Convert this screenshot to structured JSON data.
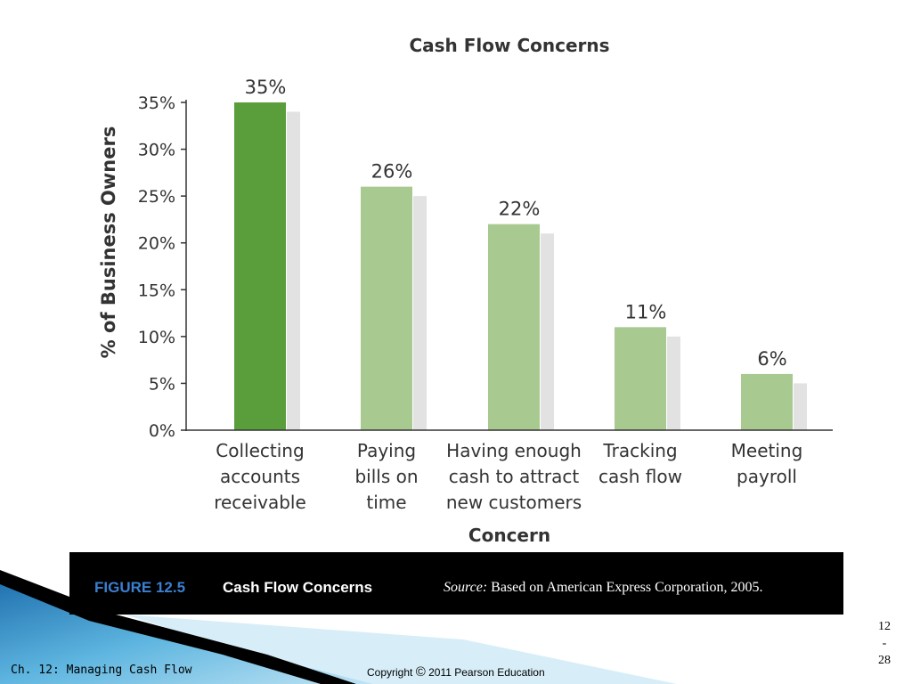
{
  "chart_data": {
    "type": "bar",
    "title": "Cash Flow Concerns",
    "xlabel": "Concern",
    "ylabel": "% of Business Owners",
    "ylim": [
      0,
      35
    ],
    "yticks": [
      "0%",
      "5%",
      "10%",
      "15%",
      "20%",
      "25%",
      "30%",
      "35%"
    ],
    "categories": [
      [
        "Collecting",
        "accounts",
        "receivable"
      ],
      [
        "Paying",
        "bills on",
        "time"
      ],
      [
        "Having enough",
        "cash to attract",
        "new customers"
      ],
      [
        "Tracking",
        "cash flow"
      ],
      [
        "Meeting",
        "payroll"
      ]
    ],
    "values": [
      35,
      26,
      22,
      11,
      6
    ],
    "value_labels": [
      "35%",
      "26%",
      "22%",
      "11%",
      "6%"
    ],
    "grid": false,
    "colors": {
      "highlight": "#5a9e3c",
      "bar": "#a8c990",
      "shadow": "#e2e2e2"
    }
  },
  "caption": {
    "figure_label": "FIGURE 12.5",
    "figure_title": "Cash Flow Concerns",
    "source_word": "Source:",
    "source_text": " Based on American Express Corporation, 2005."
  },
  "footer": {
    "chapter": "Ch. 12: Managing Cash Flow",
    "copyright_prefix": "Copyright ",
    "copyright_symbol": "©",
    "copyright_rest": " 2011 Pearson Education",
    "page_top": "12",
    "page_sep": "-",
    "page_bottom": "28"
  }
}
